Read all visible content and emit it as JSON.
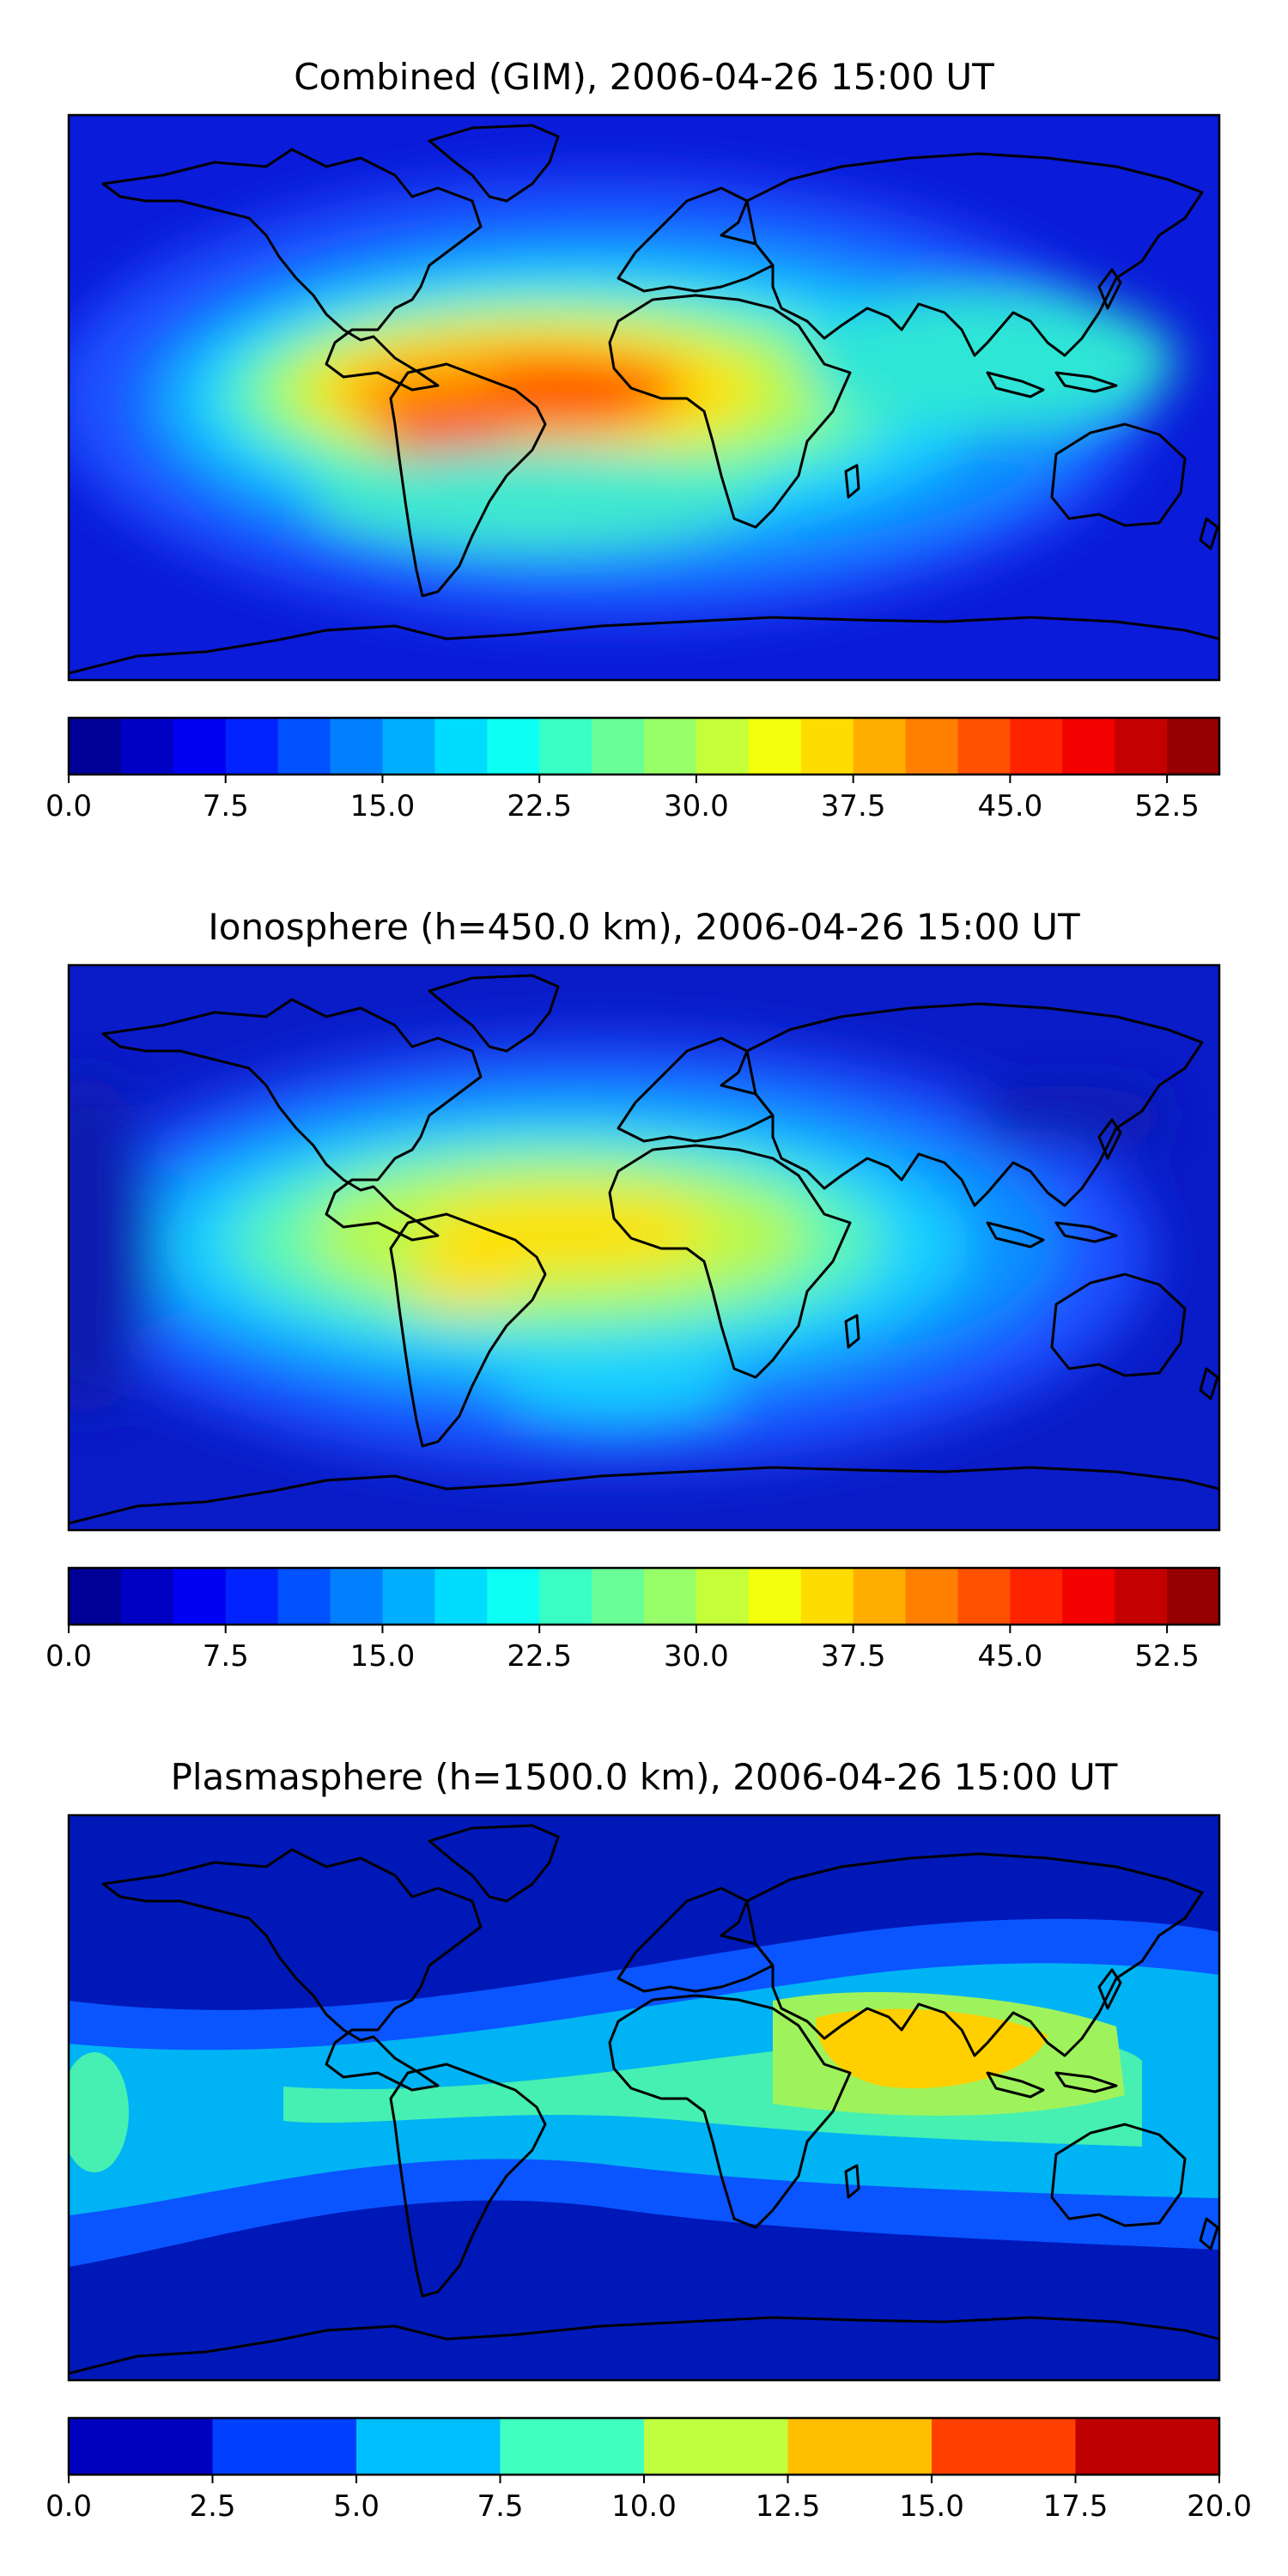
{
  "chart_data": [
    {
      "type": "heatmap",
      "title": "Combined (GIM), 2006-04-26 15:00 UT",
      "xlabel": "",
      "ylabel": "",
      "projection": "world map, equirectangular, with coastlines",
      "colormap": "jet",
      "colorbar": {
        "orientation": "horizontal",
        "placement": "below",
        "range": [
          0,
          55
        ],
        "levels": 22,
        "ticks": [
          0,
          7.5,
          15,
          22.5,
          30,
          37.5,
          45,
          52.5
        ],
        "tick_labels": [
          "0.0",
          "7.5",
          "15.0",
          "22.5",
          "30.0",
          "37.5",
          "45.0",
          "52.5"
        ]
      },
      "features": [
        {
          "region": "central Atlantic / Brazil – West Africa equatorial band",
          "value": 47
        },
        {
          "region": "northern South America",
          "value": 42
        },
        {
          "region": "north Africa / Arabia",
          "value": 33
        },
        {
          "region": "southeast Asia / Indonesia",
          "value": 22
        },
        {
          "region": "South Atlantic",
          "value": 22
        },
        {
          "region": "high latitudes (polar)",
          "value": 5
        }
      ]
    },
    {
      "type": "heatmap",
      "title": "Ionosphere  (h=450.0 km), 2006-04-26 15:00 UT",
      "xlabel": "",
      "ylabel": "",
      "projection": "world map, equirectangular, with coastlines",
      "colormap": "jet",
      "colorbar": {
        "orientation": "horizontal",
        "placement": "below",
        "range": [
          0,
          55
        ],
        "levels": 22,
        "ticks": [
          0,
          7.5,
          15,
          22.5,
          30,
          37.5,
          45,
          52.5
        ],
        "tick_labels": [
          "0.0",
          "7.5",
          "15.0",
          "22.5",
          "30.0",
          "37.5",
          "45.0",
          "52.5"
        ]
      },
      "features": [
        {
          "region": "equatorial Atlantic / west Africa",
          "value": 36
        },
        {
          "region": "northern South America",
          "value": 33
        },
        {
          "region": "north Africa / Arabia",
          "value": 25
        },
        {
          "region": "South Atlantic",
          "value": 18
        },
        {
          "region": "southeast Asia",
          "value": 12
        },
        {
          "region": "high latitudes (polar)",
          "value": 4
        }
      ]
    },
    {
      "type": "heatmap",
      "title": "Plasmasphere (h=1500.0 km), 2006-04-26 15:00 UT",
      "xlabel": "",
      "ylabel": "",
      "projection": "world map, equirectangular, with coastlines",
      "colormap": "jet",
      "colorbar": {
        "orientation": "horizontal",
        "placement": "below",
        "range": [
          0,
          20
        ],
        "levels": 8,
        "ticks": [
          0,
          2.5,
          5,
          7.5,
          10,
          12.5,
          15,
          17.5,
          20
        ],
        "tick_labels": [
          "0.0",
          "2.5",
          "5.0",
          "7.5",
          "10.0",
          "12.5",
          "15.0",
          "17.5",
          "20.0"
        ]
      },
      "features": [
        {
          "region": "India / southeast Asia",
          "value": 13.5
        },
        {
          "region": "tropical band",
          "value": 9
        },
        {
          "region": "mid latitudes",
          "value": 6
        },
        {
          "region": "high latitudes (polar)",
          "value": 1.5
        }
      ]
    }
  ]
}
